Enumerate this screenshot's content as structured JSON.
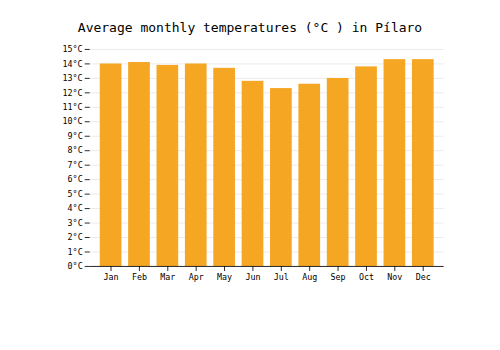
{
  "chart_data": {
    "type": "bar",
    "title": "Average monthly temperatures (°C ) in Pílaro",
    "categories": [
      "Jan",
      "Feb",
      "Mar",
      "Apr",
      "May",
      "Jun",
      "Jul",
      "Aug",
      "Sep",
      "Oct",
      "Nov",
      "Dec"
    ],
    "values": [
      14.0,
      14.1,
      13.9,
      14.0,
      13.7,
      12.8,
      12.3,
      12.6,
      13.0,
      13.8,
      14.3,
      14.3
    ],
    "color": "#F5A623",
    "ylim": [
      0,
      15
    ],
    "yticks": [
      {
        "value": 0,
        "label": "0°C"
      },
      {
        "value": 1,
        "label": "1°C"
      },
      {
        "value": 2,
        "label": "2°C"
      },
      {
        "value": 3,
        "label": "3°C"
      },
      {
        "value": 4,
        "label": "4°C"
      },
      {
        "value": 5,
        "label": "5°C"
      },
      {
        "value": 6,
        "label": "6°C"
      },
      {
        "value": 7,
        "label": "7°C"
      },
      {
        "value": 8,
        "label": "8°C"
      },
      {
        "value": 9,
        "label": "9°C"
      },
      {
        "value": 10,
        "label": "10°C"
      },
      {
        "value": 11,
        "label": "11°C"
      },
      {
        "value": 12,
        "label": "12°C"
      },
      {
        "value": 13,
        "label": "13°C"
      },
      {
        "value": 14,
        "label": "14°C"
      },
      {
        "value": 15,
        "label": "15°C"
      }
    ],
    "grid": true
  }
}
